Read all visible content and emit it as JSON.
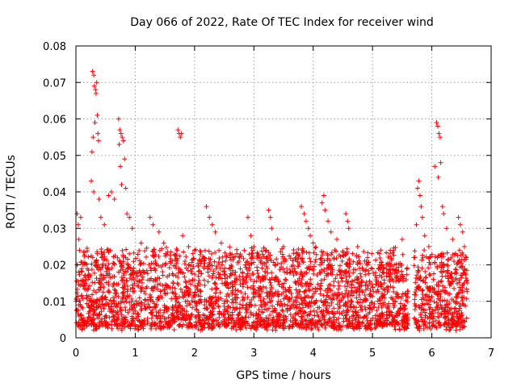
{
  "chart_data": {
    "type": "scatter",
    "title": "Day 066 of 2022, Rate Of TEC Index for receiver wind",
    "xlabel": "GPS time / hours",
    "ylabel": "ROTI / TECUs",
    "xlim": [
      0,
      7
    ],
    "ylim": [
      0,
      0.08
    ],
    "xticks": [
      "0",
      "1",
      "2",
      "3",
      "4",
      "5",
      "6",
      "7"
    ],
    "yticks": [
      "0",
      "0.01",
      "0.02",
      "0.03",
      "0.04",
      "0.05",
      "0.06",
      "0.07",
      "0.08"
    ],
    "grid": true,
    "marker": "+",
    "series": [
      {
        "name": "ROTI",
        "color": "#ff0000",
        "points": [
          [
            0.02,
            0.034
          ],
          [
            0.04,
            0.031
          ],
          [
            0.05,
            0.027
          ],
          [
            0.06,
            0.024
          ],
          [
            0.08,
            0.033
          ],
          [
            0.28,
            0.073
          ],
          [
            0.3,
            0.072
          ],
          [
            0.31,
            0.069
          ],
          [
            0.33,
            0.068
          ],
          [
            0.34,
            0.067
          ],
          [
            0.35,
            0.07
          ],
          [
            0.32,
            0.059
          ],
          [
            0.36,
            0.061
          ],
          [
            0.37,
            0.056
          ],
          [
            0.29,
            0.055
          ],
          [
            0.27,
            0.051
          ],
          [
            0.38,
            0.054
          ],
          [
            0.26,
            0.043
          ],
          [
            0.3,
            0.04
          ],
          [
            0.39,
            0.038
          ],
          [
            0.42,
            0.033
          ],
          [
            0.48,
            0.031
          ],
          [
            0.55,
            0.039
          ],
          [
            0.6,
            0.04
          ],
          [
            0.65,
            0.038
          ],
          [
            0.72,
            0.06
          ],
          [
            0.74,
            0.057
          ],
          [
            0.76,
            0.056
          ],
          [
            0.78,
            0.055
          ],
          [
            0.8,
            0.054
          ],
          [
            0.73,
            0.053
          ],
          [
            0.75,
            0.047
          ],
          [
            0.82,
            0.049
          ],
          [
            0.77,
            0.042
          ],
          [
            0.84,
            0.041
          ],
          [
            0.86,
            0.034
          ],
          [
            0.9,
            0.033
          ],
          [
            0.95,
            0.03
          ],
          [
            1.1,
            0.026
          ],
          [
            1.25,
            0.033
          ],
          [
            1.3,
            0.031
          ],
          [
            1.4,
            0.029
          ],
          [
            1.48,
            0.026
          ],
          [
            1.72,
            0.057
          ],
          [
            1.74,
            0.056
          ],
          [
            1.76,
            0.055
          ],
          [
            1.78,
            0.056
          ],
          [
            1.8,
            0.028
          ],
          [
            1.9,
            0.025
          ],
          [
            2.0,
            0.024
          ],
          [
            2.2,
            0.036
          ],
          [
            2.25,
            0.033
          ],
          [
            2.3,
            0.031
          ],
          [
            2.35,
            0.029
          ],
          [
            2.45,
            0.026
          ],
          [
            2.6,
            0.022
          ],
          [
            2.75,
            0.021
          ],
          [
            2.9,
            0.033
          ],
          [
            2.95,
            0.028
          ],
          [
            3.0,
            0.025
          ],
          [
            3.25,
            0.035
          ],
          [
            3.28,
            0.033
          ],
          [
            3.3,
            0.03
          ],
          [
            3.4,
            0.027
          ],
          [
            3.5,
            0.025
          ],
          [
            3.8,
            0.036
          ],
          [
            3.85,
            0.034
          ],
          [
            3.88,
            0.032
          ],
          [
            3.92,
            0.03
          ],
          [
            3.95,
            0.028
          ],
          [
            4.0,
            0.026
          ],
          [
            4.15,
            0.037
          ],
          [
            4.18,
            0.039
          ],
          [
            4.2,
            0.035
          ],
          [
            4.25,
            0.032
          ],
          [
            4.3,
            0.029
          ],
          [
            4.4,
            0.027
          ],
          [
            4.55,
            0.034
          ],
          [
            4.58,
            0.032
          ],
          [
            4.6,
            0.03
          ],
          [
            4.75,
            0.025
          ],
          [
            4.9,
            0.021
          ],
          [
            5.1,
            0.019
          ],
          [
            5.3,
            0.024
          ],
          [
            5.5,
            0.027
          ],
          [
            5.7,
            0.022
          ],
          [
            5.76,
            0.041
          ],
          [
            5.78,
            0.043
          ],
          [
            5.8,
            0.039
          ],
          [
            5.82,
            0.036
          ],
          [
            5.84,
            0.033
          ],
          [
            5.74,
            0.031
          ],
          [
            5.88,
            0.028
          ],
          [
            5.95,
            0.025
          ],
          [
            6.05,
            0.047
          ],
          [
            6.08,
            0.059
          ],
          [
            6.1,
            0.058
          ],
          [
            6.12,
            0.056
          ],
          [
            6.14,
            0.055
          ],
          [
            6.11,
            0.044
          ],
          [
            6.15,
            0.048
          ],
          [
            6.18,
            0.036
          ],
          [
            6.2,
            0.034
          ],
          [
            6.25,
            0.03
          ],
          [
            6.35,
            0.027
          ],
          [
            6.45,
            0.033
          ],
          [
            6.48,
            0.031
          ],
          [
            6.52,
            0.029
          ],
          [
            6.55,
            0.025
          ],
          [
            6.58,
            0.022
          ]
        ],
        "dense_band": {
          "note": "dense cloud of points spanning the full time range",
          "x_range": [
            0.0,
            6.6
          ],
          "typical_y": [
            0.003,
            0.024
          ],
          "gap_x": [
            5.6,
            5.7
          ]
        }
      }
    ]
  }
}
